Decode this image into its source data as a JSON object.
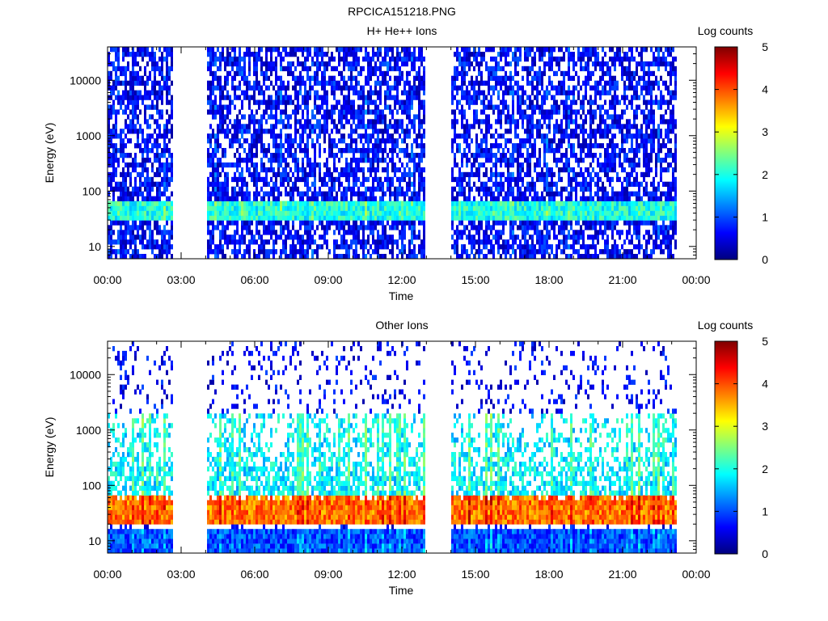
{
  "figure_title": "RPCICA151218.PNG",
  "colorbar": {
    "label": "Log counts",
    "ticks": [
      "0",
      "1",
      "2",
      "3",
      "4",
      "5"
    ],
    "range": [
      0,
      5
    ],
    "colormap": [
      "#00007f",
      "#0000ff",
      "#007fff",
      "#00ffff",
      "#7fff7f",
      "#ffff00",
      "#ff7f00",
      "#ff0000",
      "#7f0000"
    ]
  },
  "chart_data": [
    {
      "type": "heatmap",
      "title": "H+ He++ Ions",
      "xlabel": "Time",
      "ylabel": "Energy (eV)",
      "x_tick_labels": [
        "00:00",
        "03:00",
        "06:00",
        "09:00",
        "12:00",
        "15:00",
        "18:00",
        "21:00",
        "00:00"
      ],
      "x_range_hours": [
        0,
        24
      ],
      "y_scale": "log",
      "y_tick_labels": [
        "10",
        "100",
        "1000",
        "10000"
      ],
      "y_range_eV": [
        6,
        40000
      ],
      "data_intervals_hours": [
        [
          0.0,
          2.65
        ],
        [
          4.05,
          12.95
        ],
        [
          14.0,
          23.2
        ]
      ],
      "features": [
        {
          "description": "band",
          "energy_range_eV": [
            30,
            70
          ],
          "log_counts": 2.0
        },
        {
          "description": "band",
          "energy_range_eV": [
            6,
            25
          ],
          "log_counts": 0.6
        },
        {
          "description": "sparse background",
          "energy_range_eV": [
            100,
            40000
          ],
          "log_counts": 0.6
        }
      ]
    },
    {
      "type": "heatmap",
      "title": "Other Ions",
      "xlabel": "Time",
      "ylabel": "Energy (eV)",
      "x_tick_labels": [
        "00:00",
        "03:00",
        "06:00",
        "09:00",
        "12:00",
        "15:00",
        "18:00",
        "21:00",
        "00:00"
      ],
      "x_range_hours": [
        0,
        24
      ],
      "y_scale": "log",
      "y_tick_labels": [
        "10",
        "100",
        "1000",
        "10000"
      ],
      "y_range_eV": [
        6,
        40000
      ],
      "data_intervals_hours": [
        [
          0.0,
          2.65
        ],
        [
          4.05,
          12.95
        ],
        [
          14.0,
          23.2
        ]
      ],
      "features": [
        {
          "description": "band",
          "energy_range_eV": [
            20,
            60
          ],
          "log_counts": 3.8
        },
        {
          "description": "spikes",
          "energy_range_eV": [
            60,
            2000
          ],
          "log_counts": 1.8
        },
        {
          "description": "band",
          "energy_range_eV": [
            6,
            18
          ],
          "log_counts": 1.0
        }
      ]
    }
  ]
}
